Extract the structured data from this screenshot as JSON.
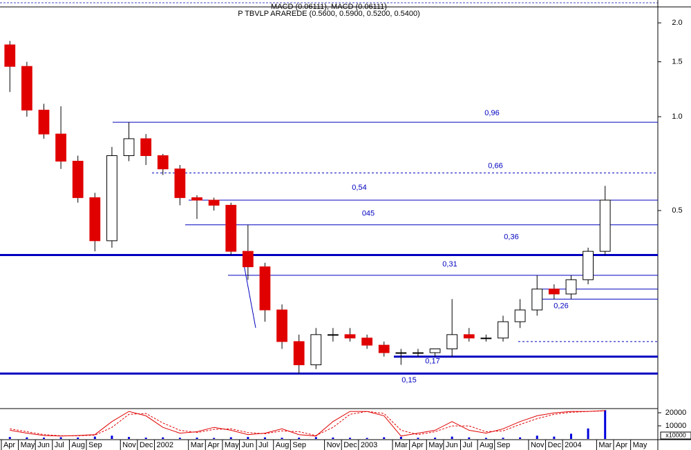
{
  "chart_data": [
    {
      "type": "candlestick",
      "title": "MACD (0.06111), MACD (0.06111)",
      "subtitle": "P TBVLP ARAREDE (0.5600, 0.5900, 0.5200, 0.5400)",
      "x": [
        0,
        1,
        2,
        3,
        4,
        5,
        6,
        7,
        8,
        9,
        10,
        11,
        12,
        13,
        14,
        15,
        16,
        17,
        18,
        19,
        20,
        21,
        22,
        23,
        24,
        25,
        26,
        27,
        28,
        29,
        30,
        31,
        32,
        33,
        34,
        35
      ],
      "open": [
        1.7,
        1.45,
        1.05,
        0.88,
        0.72,
        0.55,
        0.4,
        0.75,
        0.85,
        0.75,
        0.68,
        0.55,
        0.54,
        0.52,
        0.37,
        0.33,
        0.24,
        0.19,
        0.16,
        0.2,
        0.2,
        0.195,
        0.185,
        0.175,
        0.175,
        0.175,
        0.18,
        0.2,
        0.195,
        0.195,
        0.22,
        0.24,
        0.28,
        0.27,
        0.3,
        0.37
      ],
      "high": [
        1.75,
        1.5,
        1.1,
        1.08,
        0.75,
        0.57,
        0.8,
        0.96,
        0.88,
        0.76,
        0.7,
        0.56,
        0.55,
        0.53,
        0.45,
        0.34,
        0.25,
        0.2,
        0.21,
        0.21,
        0.21,
        0.2,
        0.19,
        0.18,
        0.18,
        0.18,
        0.26,
        0.21,
        0.2,
        0.23,
        0.26,
        0.31,
        0.29,
        0.31,
        0.38,
        0.6
      ],
      "low": [
        1.2,
        1.0,
        0.85,
        0.68,
        0.53,
        0.37,
        0.38,
        0.72,
        0.7,
        0.65,
        0.52,
        0.47,
        0.5,
        0.36,
        0.3,
        0.22,
        0.18,
        0.15,
        0.155,
        0.19,
        0.19,
        0.18,
        0.17,
        0.16,
        0.17,
        0.17,
        0.17,
        0.19,
        0.19,
        0.19,
        0.21,
        0.23,
        0.26,
        0.26,
        0.29,
        0.36
      ],
      "close": [
        1.45,
        1.05,
        0.88,
        0.72,
        0.55,
        0.4,
        0.75,
        0.85,
        0.75,
        0.68,
        0.55,
        0.54,
        0.52,
        0.37,
        0.33,
        0.24,
        0.19,
        0.16,
        0.2,
        0.2,
        0.195,
        0.185,
        0.175,
        0.175,
        0.175,
        0.18,
        0.2,
        0.195,
        0.195,
        0.22,
        0.24,
        0.28,
        0.27,
        0.3,
        0.37,
        0.54
      ],
      "up_color": "#ffffff",
      "down_color": "#e00000",
      "xlim": [
        -0.08,
        38.6
      ],
      "xticks": [
        {
          "value": 0,
          "label": "Apr"
        },
        {
          "value": 1,
          "label": "May"
        },
        {
          "value": 2,
          "label": "Jun"
        },
        {
          "value": 3,
          "label": "Jul"
        },
        {
          "value": 4,
          "label": "Aug"
        },
        {
          "value": 5,
          "label": "Sep"
        },
        {
          "value": 7,
          "label": "Nov"
        },
        {
          "value": 8,
          "label": "Dec"
        },
        {
          "value": 9,
          "label": "2002"
        },
        {
          "value": 11,
          "label": "Mar"
        },
        {
          "value": 12,
          "label": "Apr"
        },
        {
          "value": 13,
          "label": "May"
        },
        {
          "value": 14,
          "label": "Jun"
        },
        {
          "value": 15,
          "label": "Jul"
        },
        {
          "value": 16,
          "label": "Aug"
        },
        {
          "value": 17,
          "label": "Sep"
        },
        {
          "value": 19,
          "label": "Nov"
        },
        {
          "value": 20,
          "label": "Dec"
        },
        {
          "value": 21,
          "label": "2003"
        },
        {
          "value": 23,
          "label": "Mar"
        },
        {
          "value": 24,
          "label": "Apr"
        },
        {
          "value": 25,
          "label": "May"
        },
        {
          "value": 26,
          "label": "Jun"
        },
        {
          "value": 27,
          "label": "Jul"
        },
        {
          "value": 28,
          "label": "Aug"
        },
        {
          "value": 29,
          "label": "Sep"
        },
        {
          "value": 31,
          "label": "Nov"
        },
        {
          "value": 32,
          "label": "Dec"
        },
        {
          "value": 33,
          "label": "2004"
        },
        {
          "value": 35,
          "label": "Mar"
        },
        {
          "value": 36,
          "label": "Apr"
        },
        {
          "value": 37,
          "label": "May"
        }
      ],
      "ylim": [
        0.117,
        2.25
      ],
      "log_scale": true,
      "yticks": [
        {
          "value": 2,
          "label": "2.0"
        },
        {
          "value": 1.5,
          "label": "1.5"
        },
        {
          "value": 1,
          "label": "1.0"
        },
        {
          "value": 0.5,
          "label": "0.5"
        }
      ],
      "levels": [
        {
          "value": 0.96,
          "label": "0,96"
        },
        {
          "value": 0.66,
          "label": "0,66"
        },
        {
          "value": 0.54,
          "label": "0,54"
        },
        {
          "value": 0.45,
          "label": "045"
        },
        {
          "value": 0.36,
          "label": "0,36"
        },
        {
          "value": 0.31,
          "label": "0,31"
        },
        0.28,
        {
          "value": 0.26,
          "label": "0,26"
        },
        0.19,
        {
          "value": 0.17,
          "label": "0,17"
        },
        {
          "value": 0.15,
          "label": "0,15"
        }
      ],
      "level_color": "#0000c0"
    },
    {
      "type": "volume",
      "values": [
        1500,
        1200,
        1000,
        1300,
        1100,
        1800,
        2500,
        1500,
        1000,
        1200,
        900,
        1000,
        800,
        1300,
        1500,
        1200,
        900,
        1000,
        1400,
        1100,
        900,
        800,
        1300,
        1600,
        900,
        1000,
        1800,
        1200,
        800,
        900,
        1200,
        2500,
        1800,
        4000,
        8000,
        22000
      ],
      "color": "#0000dd",
      "ylim": [
        0,
        22100
      ],
      "yticks": [
        10000,
        20000
      ],
      "unit_label": "x10000",
      "series": [
        {
          "color": "#e00000",
          "values": [
            30,
            20,
            12,
            10,
            12,
            15,
            60,
            95,
            80,
            40,
            20,
            25,
            40,
            30,
            15,
            20,
            35,
            15,
            10,
            60,
            95,
            95,
            80,
            10,
            20,
            30,
            60,
            30,
            20,
            35,
            60,
            80,
            90,
            95,
            95,
            98
          ]
        },
        {
          "color": "#e00000",
          "values": [
            35,
            25,
            15,
            11,
            11,
            13,
            40,
            85,
            88,
            55,
            30,
            22,
            33,
            35,
            22,
            18,
            28,
            25,
            12,
            40,
            85,
            95,
            88,
            30,
            15,
            25,
            45,
            45,
            25,
            28,
            50,
            70,
            85,
            92,
            95,
            97
          ]
        }
      ],
      "y2lim": [
        0,
        100
      ]
    }
  ]
}
